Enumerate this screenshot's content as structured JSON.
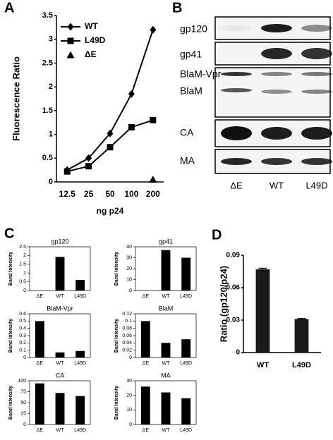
{
  "panel_labels": [
    "A",
    "B",
    "C",
    "D"
  ],
  "blot": {
    "row_labels": [
      "gp120",
      "gp41",
      "BlaM-Vpr",
      "BlaM",
      "CA",
      "MA"
    ],
    "lanes": [
      "ΔE",
      "WT",
      "L49D"
    ]
  },
  "chart_data": [
    {
      "type": "line",
      "categories": [
        "12.5",
        "25",
        "50",
        "100",
        "200"
      ],
      "x_label": "ng p24",
      "y_label": "Fluorescence Ratio",
      "ylim": [
        0,
        3.5
      ],
      "yticks": [
        0,
        0.5,
        1,
        1.5,
        2,
        2.5,
        3,
        3.5
      ],
      "legend": "top-left",
      "series": [
        {
          "name": "WT",
          "color": "#000000",
          "marker": "diamond",
          "values": [
            0.25,
            0.5,
            1.02,
            1.85,
            3.2
          ]
        },
        {
          "name": "L49D",
          "color": "#000000",
          "marker": "square",
          "values": [
            0.22,
            0.33,
            0.73,
            1.15,
            1.3
          ]
        },
        {
          "name": "ΔE",
          "color": "#000000",
          "marker": "triangle",
          "values": [
            null,
            null,
            null,
            null,
            0.05
          ]
        }
      ]
    },
    {
      "type": "bar",
      "title": "gp120",
      "y_label": "Band Intensity",
      "categories": [
        "ΔE",
        "WT",
        "L49D"
      ],
      "values": [
        0,
        1.92,
        0.6
      ],
      "color": "#000000",
      "ylim": [
        0,
        2.5
      ],
      "yticks": [
        0,
        0.5,
        1,
        1.5,
        2,
        2.5
      ]
    },
    {
      "type": "bar",
      "title": "gp41",
      "y_label": "Band Intensity",
      "categories": [
        "ΔE",
        "WT",
        "L49D"
      ],
      "values": [
        0,
        37,
        30
      ],
      "color": "#000000",
      "ylim": [
        0,
        40
      ],
      "yticks": [
        0,
        10,
        20,
        30,
        40
      ]
    },
    {
      "type": "bar",
      "title": "BlaM-Vpr",
      "y_label": "Band Intensity",
      "categories": [
        "ΔE",
        "WT",
        "L49D"
      ],
      "values": [
        0.5,
        0.07,
        0.09
      ],
      "color": "#000000",
      "ylim": [
        0,
        0.6
      ],
      "yticks": [
        0,
        0.1,
        0.2,
        0.3,
        0.4,
        0.5,
        0.6
      ]
    },
    {
      "type": "bar",
      "title": "BlaM",
      "y_label": "Band Intensity",
      "categories": [
        "ΔE",
        "WT",
        "L49D"
      ],
      "values": [
        0.1,
        0.04,
        0.05
      ],
      "color": "#000000",
      "ylim": [
        0,
        0.12
      ],
      "yticks": [
        0,
        0.02,
        0.04,
        0.06,
        0.08,
        0.1,
        0.12
      ]
    },
    {
      "type": "bar",
      "title": "CA",
      "y_label": "Band Intensity",
      "categories": [
        "ΔE",
        "WT",
        "L49D"
      ],
      "values": [
        94,
        72,
        65
      ],
      "color": "#000000",
      "ylim": [
        0,
        100
      ],
      "yticks": [
        0,
        25,
        50,
        75,
        100
      ]
    },
    {
      "type": "bar",
      "title": "MA",
      "y_label": "Band Intensity",
      "categories": [
        "ΔE",
        "WT",
        "L49D"
      ],
      "values": [
        26,
        22,
        18
      ],
      "color": "#000000",
      "ylim": [
        0,
        30
      ],
      "yticks": [
        0,
        10,
        20,
        30
      ]
    },
    {
      "type": "bar",
      "y_label": "Ratio (gp120/p24)",
      "categories": [
        "WT",
        "L49D"
      ],
      "values": [
        0.077,
        0.031
      ],
      "errors": [
        0.001,
        0.0005
      ],
      "color": "#1a1a1a",
      "ylim": [
        0,
        0.09
      ],
      "yticks": [
        0,
        0.03,
        0.06,
        0.09
      ]
    }
  ]
}
